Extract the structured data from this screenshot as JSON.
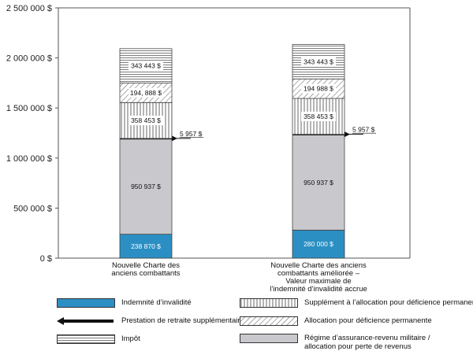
{
  "chart_data": {
    "type": "bar",
    "stacked": true,
    "categories": [
      [
        "Nouvelle Charte des",
        "anciens combattants"
      ],
      [
        "Nouvelle Charte des anciens",
        "combattants améliorée –",
        "Valeur maximale de",
        "l’indemnité d’invalidité accrue"
      ]
    ],
    "ylim": [
      0,
      2500000
    ],
    "yticks": [
      "0 $",
      "500 000 $",
      "1 000 000 $",
      "1 500 000 $",
      "2 000 000 $",
      "2 500 000 $"
    ],
    "grid": false,
    "series": [
      {
        "name": "Indemnité d’invalidité",
        "values": [
          238870,
          280000
        ],
        "labels": [
          "238 870 $",
          "280 000 $"
        ],
        "pattern": "solid-blue",
        "color": "#2b8fc3"
      },
      {
        "name": "Régime d’assurance-revenu militaire / allocation pour perte de revenus",
        "values": [
          950937,
          950937
        ],
        "labels": [
          "950 937 $",
          "950 937 $"
        ],
        "pattern": "solid-gray",
        "color": "#c9c9cd"
      },
      {
        "name": "Prestation de retraite supplémentaire",
        "values": [
          5957,
          5957
        ],
        "labels": [
          "5 957 $",
          "5 957 $"
        ],
        "pattern": "arrow",
        "color": "#111111"
      },
      {
        "name": "Supplément à l’allocation pour déficience permanente",
        "values": [
          358453,
          358453
        ],
        "labels": [
          "358 453 $",
          "358 453 $"
        ],
        "pattern": "vertical-lines"
      },
      {
        "name": "Allocation pour déficience permanente",
        "values": [
          194888,
          194988
        ],
        "labels": [
          "194, 888 $",
          "194 988 $"
        ],
        "pattern": "diagonal-lines"
      },
      {
        "name": "Impôt",
        "values": [
          343443,
          343443
        ],
        "labels": [
          "343 443 $",
          "343 443 $"
        ],
        "pattern": "horizontal-lines"
      }
    ],
    "legend_position": "bottom"
  },
  "legend": {
    "disability_award": "Indemnité d’invalidité",
    "retirement_benefit": "Prestation de retraite supplémentaire",
    "tax": "Impôt",
    "pia_supplement": "Supplément à l’allocation pour déficience permanente",
    "pia": "Allocation pour déficience permanente",
    "sisip_line1": "Régime d’assurance-revenu militaire /",
    "sisip_line2": "allocation pour perte de revenus"
  }
}
